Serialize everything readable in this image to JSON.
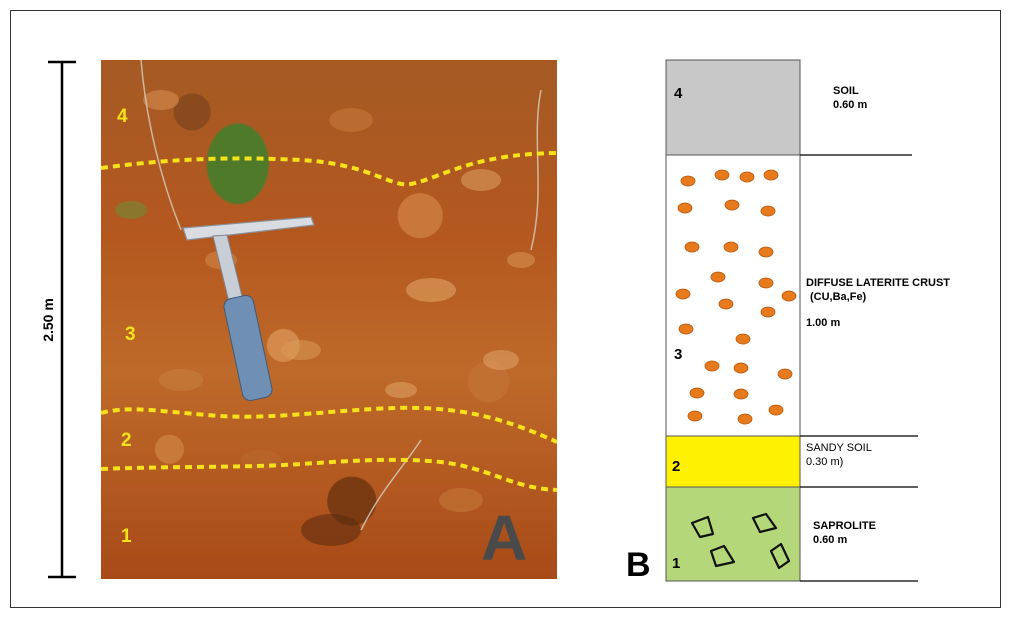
{
  "colors": {
    "marker_yellow": "#f5e21a",
    "layer4_fill": "#c8c8c8",
    "layer2_fill": "#fff200",
    "layer1_fill": "#b4d77a",
    "nodule_fill": "#e87a1e",
    "soil_base": "#b4581f"
  },
  "scale_bar": {
    "label": "2.50 m"
  },
  "photo": {
    "panel_letter": "A",
    "layer_numbers": [
      "4",
      "3",
      "2",
      "1"
    ],
    "object": "rock-hammer"
  },
  "column": {
    "panel_letter": "B",
    "layers": [
      {
        "number": "4",
        "name": "SOIL",
        "thickness": "0.60 m"
      },
      {
        "number": "3",
        "name": "DIFFUSE LATERITE CRUST",
        "detail": "(CU,Ba,Fe)",
        "thickness": "1.00 m"
      },
      {
        "number": "2",
        "name": "SANDY SOIL",
        "thickness": "0.30 m)"
      },
      {
        "number": "1",
        "name": "SAPROLITE",
        "thickness": "0.60  m"
      }
    ]
  }
}
